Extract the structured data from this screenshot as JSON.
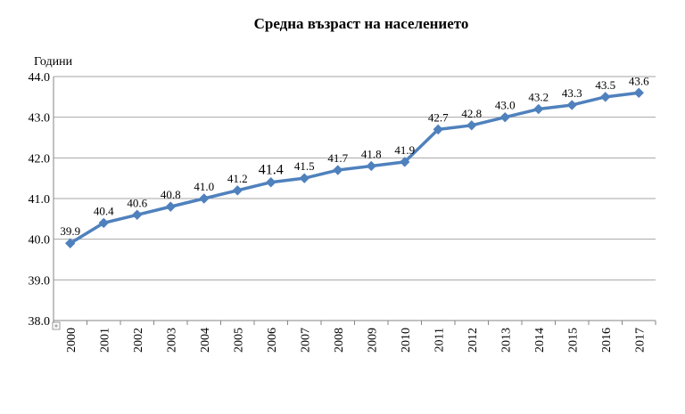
{
  "chart_data": {
    "type": "line",
    "title": "Средна възраст на населението",
    "ylabel": "Години",
    "xlabel": "",
    "ylim": [
      38.0,
      44.0
    ],
    "yticks": [
      "38.0",
      "39.0",
      "40.0",
      "41.0",
      "42.0",
      "43.0",
      "44.0"
    ],
    "categories": [
      "2000",
      "2001",
      "2002",
      "2003",
      "2004",
      "2005",
      "2006",
      "2007",
      "2008",
      "2009",
      "2010",
      "2011",
      "2012",
      "2013",
      "2014",
      "2015",
      "2016",
      "2017"
    ],
    "series": [
      {
        "values": [
          39.9,
          40.4,
          40.6,
          40.8,
          41.0,
          41.2,
          41.4,
          41.5,
          41.7,
          41.8,
          41.9,
          42.7,
          42.8,
          43.0,
          43.2,
          43.3,
          43.5,
          43.6
        ],
        "labels": [
          "39.9",
          "40.4",
          "40.6",
          "40.8",
          "41.0",
          "41.2",
          "41.4",
          "41.5",
          "41.7",
          "41.8",
          "41.9",
          "42.7",
          "42.8",
          "43.0",
          "43.2",
          "43.3",
          "43.5",
          "43.6"
        ]
      }
    ],
    "grid": "horizontal",
    "legend": "none",
    "colors": {
      "line": "#4f81bd",
      "marker": "#4f81bd",
      "grid": "#a6a6a6",
      "axis": "#868686"
    }
  }
}
